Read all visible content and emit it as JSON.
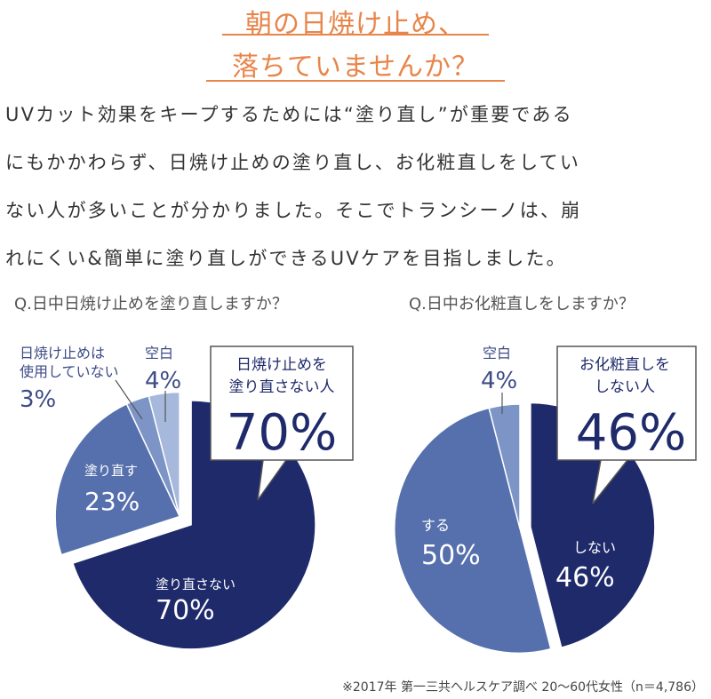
{
  "headline": {
    "line1": "朝の日焼け止め、",
    "line2": "落ちていませんか？"
  },
  "body": {
    "line1": "UVカット効果をキープするためには“塗り直し”が重要である",
    "line2": "にもかかわらず、日焼け止めの塗り直し、お化粧直しをしてい",
    "line3": "ない人が多いことが分かりました。そこでトランシーノは、崩",
    "line4": "れにくい&簡単に塗り直しができるUVケアを目指しました。"
  },
  "colors": {
    "accent": "#e8854a",
    "navy": "#1f2a6b",
    "mid": "#5670ad",
    "light": "#7d95c6",
    "pale": "#a6b8dc",
    "callout_text": "#1f2a6b"
  },
  "chart_data": [
    {
      "type": "pie",
      "title": "Q.日中日焼け止めを塗り直しますか？",
      "slices": [
        {
          "label": "塗り直さない",
          "value": 70,
          "display": "70%"
        },
        {
          "label": "塗り直す",
          "value": 23,
          "display": "23%"
        },
        {
          "label": "日焼け止めは使用していない",
          "label_lines": [
            "日焼け止めは",
            "使用していない"
          ],
          "value": 3,
          "display": "3%"
        },
        {
          "label": "空白",
          "value": 4,
          "display": "4%"
        }
      ],
      "callout": {
        "lines": [
          "日焼け止めを",
          "塗り直さない人"
        ],
        "value": "70%"
      }
    },
    {
      "type": "pie",
      "title": "Q.日中お化粧直しをしますか？",
      "slices": [
        {
          "label": "しない",
          "value": 46,
          "display": "46%"
        },
        {
          "label": "する",
          "value": 50,
          "display": "50%"
        },
        {
          "label": "空白",
          "value": 4,
          "display": "4%"
        }
      ],
      "callout": {
        "lines": [
          "お化粧直しを",
          "しない人"
        ],
        "value": "46%"
      }
    }
  ],
  "footnote": "※2017年 第一三共ヘルスケア調べ 20〜60代女性（n＝4,786）"
}
